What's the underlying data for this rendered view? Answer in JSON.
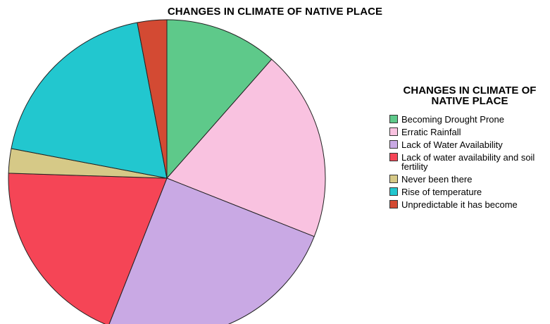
{
  "chart_data": {
    "type": "pie",
    "title": "CHANGES IN CLIMATE OF NATIVE PLACE",
    "legend_title": "CHANGES IN CLIMATE OF NATIVE PLACE",
    "legend_position": "right",
    "start_angle_deg": 0,
    "direction": "clockwise",
    "slices": [
      {
        "label": "Becoming Drought Prone",
        "value": 11.5,
        "color": "#5ec98a"
      },
      {
        "label": "Erratic Rainfall",
        "value": 19.5,
        "color": "#f9c2e0"
      },
      {
        "label": "Lack of Water Availability",
        "value": 25.0,
        "color": "#c9a9e4"
      },
      {
        "label": "Lack of water availability and soil fertility",
        "value": 19.5,
        "color": "#f54556"
      },
      {
        "label": "Never been there",
        "value": 2.5,
        "color": "#d6c987"
      },
      {
        "label": "Rise of temperature",
        "value": 19.0,
        "color": "#22c7cf"
      },
      {
        "label": "Unpredictable it has become",
        "value": 3.0,
        "color": "#d34a33"
      }
    ]
  }
}
